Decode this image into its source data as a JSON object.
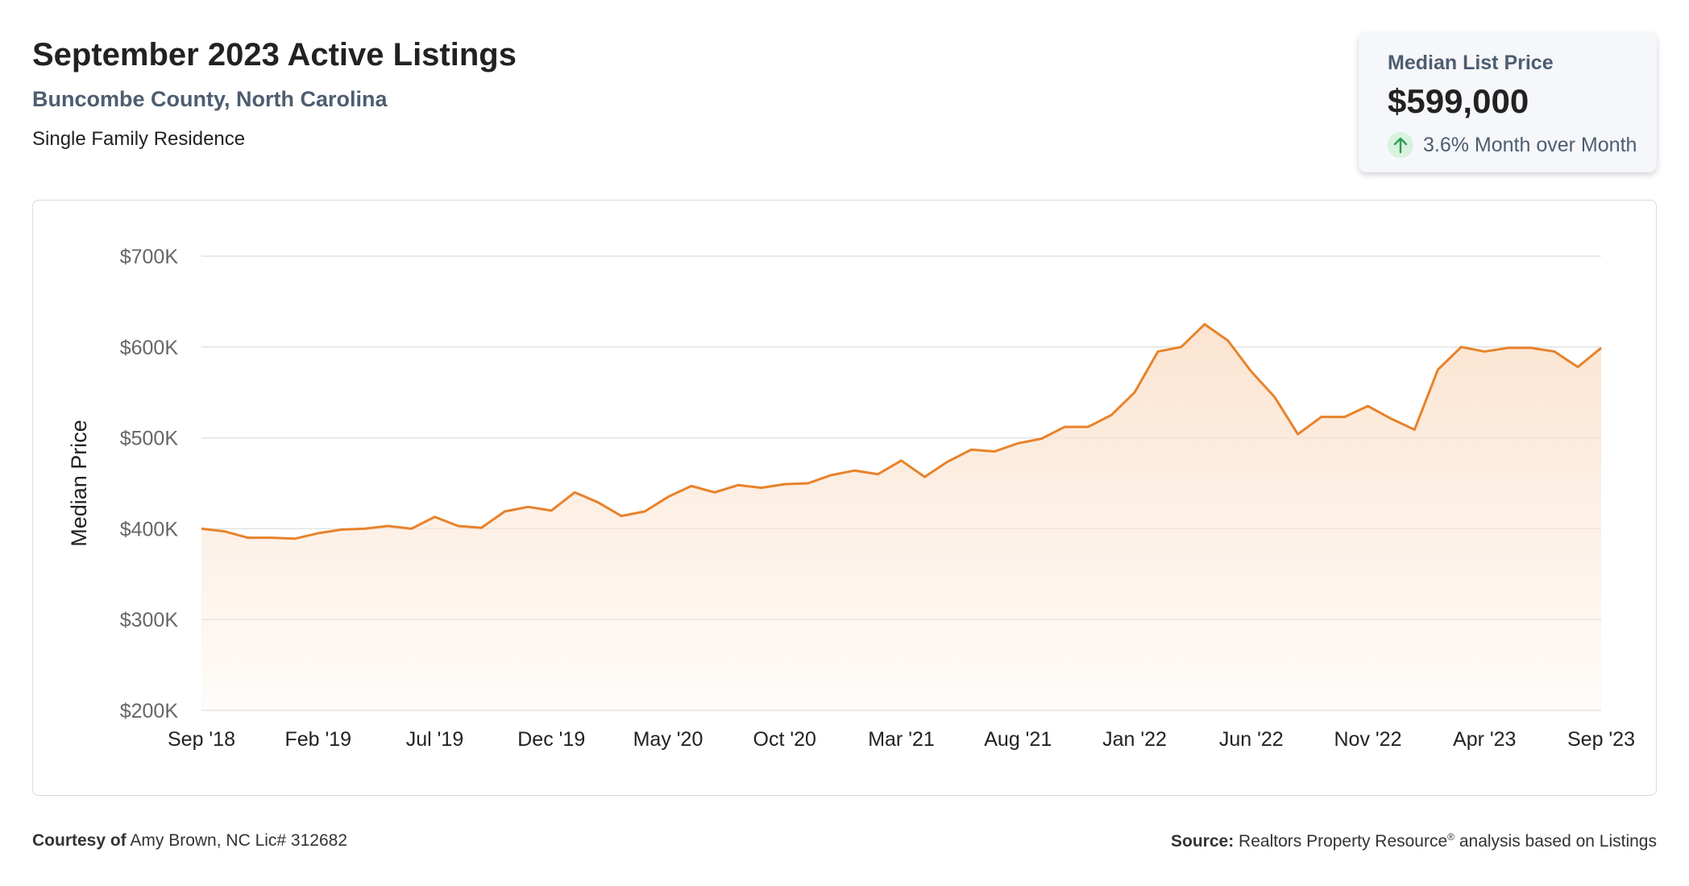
{
  "header": {
    "title": "September 2023 Active Listings",
    "subtitle": "Buncombe County, North Carolina",
    "category": "Single Family Residence"
  },
  "stat_card": {
    "label": "Median List Price",
    "value": "$599,000",
    "change": "3.6% Month over Month",
    "icon": "arrow-up-icon",
    "accent_color": "#2e9e4f"
  },
  "footer": {
    "courtesy_label": "Courtesy of",
    "courtesy_text": "Amy Brown, NC Lic# 312682",
    "source_label": "Source:",
    "source_text_a": "Realtors Property Resource",
    "source_mark": "®",
    "source_text_b": " analysis based on Listings"
  },
  "chart_data": {
    "type": "area",
    "ylabel": "Median Price",
    "ylim": [
      200000,
      700000
    ],
    "y_ticks": [
      200000,
      300000,
      400000,
      500000,
      600000,
      700000
    ],
    "y_tick_labels": [
      "$200K",
      "$300K",
      "$400K",
      "$500K",
      "$600K",
      "$700K"
    ],
    "x_tick_labels": [
      "Sep '18",
      "Feb '19",
      "Jul '19",
      "Dec '19",
      "May '20",
      "Oct '20",
      "Mar '21",
      "Aug '21",
      "Jan '22",
      "Jun '22",
      "Nov '22",
      "Apr '23",
      "Sep '23"
    ],
    "grid": true,
    "line_color": "#e8822a",
    "fill_color": "#fbe3cf",
    "series": [
      {
        "x": [
          "Sep '18",
          "Oct '18",
          "Nov '18",
          "Dec '18",
          "Jan '19",
          "Feb '19",
          "Mar '19",
          "Apr '19",
          "May '19",
          "Jun '19",
          "Jul '19",
          "Aug '19",
          "Sep '19",
          "Oct '19",
          "Nov '19",
          "Dec '19",
          "Jan '20",
          "Feb '20",
          "Mar '20",
          "Apr '20",
          "May '20",
          "Jun '20",
          "Jul '20",
          "Aug '20",
          "Sep '20",
          "Oct '20",
          "Nov '20",
          "Dec '20",
          "Jan '21",
          "Feb '21",
          "Mar '21",
          "Apr '21",
          "May '21",
          "Jun '21",
          "Jul '21",
          "Aug '21",
          "Sep '21",
          "Oct '21",
          "Nov '21",
          "Dec '21",
          "Jan '22",
          "Feb '22",
          "Mar '22",
          "Apr '22",
          "May '22",
          "Jun '22",
          "Jul '22",
          "Aug '22",
          "Sep '22",
          "Oct '22",
          "Nov '22",
          "Dec '22",
          "Jan '23",
          "Feb '23",
          "Mar '23",
          "Apr '23",
          "May '23",
          "Jun '23",
          "Jul '23",
          "Aug '23",
          "Sep '23"
        ],
        "values": [
          400000,
          397000,
          390000,
          390000,
          389000,
          395000,
          399000,
          400000,
          403000,
          400000,
          413000,
          403000,
          401000,
          419000,
          424000,
          420000,
          440000,
          429000,
          414000,
          419000,
          435000,
          447000,
          440000,
          448000,
          445000,
          449000,
          450000,
          459000,
          464000,
          460000,
          475000,
          457000,
          474000,
          487000,
          485000,
          494000,
          499000,
          512000,
          512000,
          525000,
          550000,
          595000,
          600000,
          625000,
          607000,
          573000,
          545000,
          504000,
          523000,
          523000,
          535000,
          521000,
          509000,
          575000,
          600000,
          595000,
          599000,
          599000,
          595000,
          578000,
          599000
        ]
      }
    ]
  }
}
